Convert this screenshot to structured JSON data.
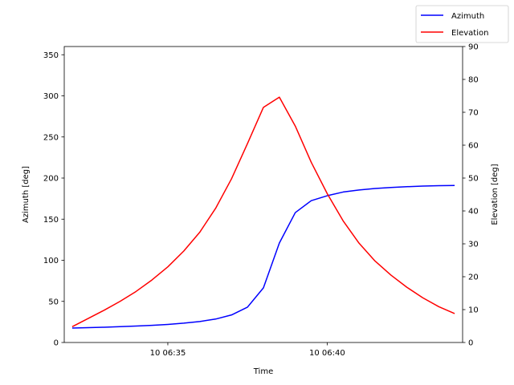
{
  "chart_data": {
    "type": "line",
    "xlabel": "Time",
    "ylabel_left": "Azimuth [deg]",
    "ylabel_right": "Elevation [deg]",
    "x_tick_labels": [
      "10 06:35",
      "10 06:40"
    ],
    "x_tick_values": [
      "06:35",
      "06:40"
    ],
    "x_range": [
      "06:31:45",
      "06:44:15"
    ],
    "ylim_left": [
      0,
      360
    ],
    "ylim_right": [
      0,
      90
    ],
    "yticks_left": [
      0,
      50,
      100,
      150,
      200,
      250,
      300,
      350
    ],
    "yticks_right": [
      0,
      10,
      20,
      30,
      40,
      50,
      60,
      70,
      80,
      90
    ],
    "x": [
      "06:32:00",
      "06:32:30",
      "06:33:00",
      "06:33:30",
      "06:34:00",
      "06:34:30",
      "06:35:00",
      "06:35:30",
      "06:36:00",
      "06:36:30",
      "06:37:00",
      "06:37:30",
      "06:38:00",
      "06:38:30",
      "06:39:00",
      "06:39:30",
      "06:40:00",
      "06:40:30",
      "06:41:00",
      "06:41:30",
      "06:42:00",
      "06:42:30",
      "06:43:00",
      "06:43:30",
      "06:44:00"
    ],
    "series": [
      {
        "name": "Azimuth",
        "axis": "left",
        "color": "#0000ff",
        "values": [
          17.5,
          18.0,
          18.6,
          19.3,
          20.0,
          20.8,
          22.0,
          23.5,
          25.5,
          28.5,
          33.5,
          43.0,
          66.5,
          121.0,
          158.0,
          172.5,
          178.5,
          183.0,
          185.5,
          187.3,
          188.6,
          189.5,
          190.2,
          190.7,
          191.0
        ]
      },
      {
        "name": "Elevation",
        "axis": "right",
        "color": "#ff0000",
        "values": [
          4.8,
          7.3,
          9.8,
          12.5,
          15.5,
          19.0,
          23.0,
          27.8,
          33.5,
          40.8,
          49.8,
          60.5,
          71.5,
          74.6,
          65.8,
          54.8,
          45.3,
          37.0,
          30.2,
          24.8,
          20.5,
          16.8,
          13.6,
          10.9,
          8.8
        ]
      }
    ],
    "legend": {
      "placement": "top-right",
      "entries": [
        "Azimuth",
        "Elevation"
      ]
    }
  }
}
